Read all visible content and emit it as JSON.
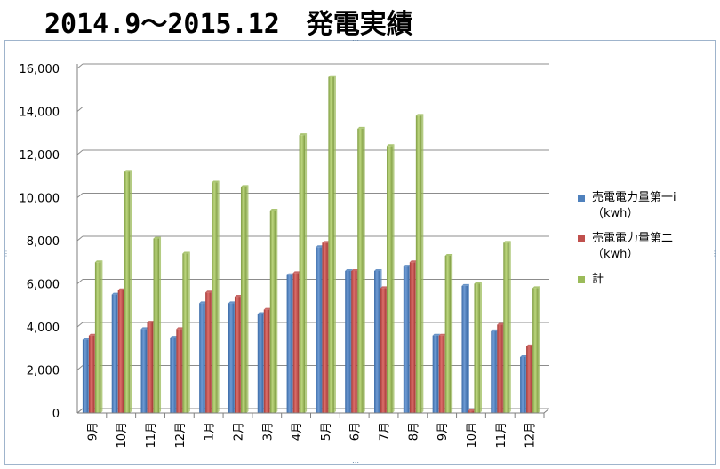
{
  "title": "2014.9～2015.12　発電実績",
  "chart_data": {
    "type": "bar",
    "categories": [
      "9月",
      "10月",
      "11月",
      "12月",
      "1月",
      "2月",
      "3月",
      "4月",
      "5月",
      "6月",
      "7月",
      "8月",
      "9月",
      "10月",
      "11月",
      "12月"
    ],
    "series": [
      {
        "name": "売電電力量第一i（kwh）",
        "color": "#4f81bd",
        "values": [
          3400,
          5500,
          3900,
          3500,
          5100,
          5100,
          4600,
          6400,
          7700,
          6600,
          6600,
          6800,
          3600,
          5900,
          3800,
          2600
        ]
      },
      {
        "name": "売電電力量第二（kwh）",
        "color": "#c0504d",
        "values": [
          3600,
          5700,
          4200,
          3900,
          5600,
          5400,
          4800,
          6500,
          7900,
          6600,
          5800,
          7000,
          3600,
          100,
          4100,
          3100
        ]
      },
      {
        "name": "計",
        "color": "#9bbb59",
        "values": [
          7000,
          11200,
          8100,
          7400,
          10700,
          10500,
          9400,
          12900,
          15600,
          13200,
          12400,
          13800,
          7300,
          6000,
          7900,
          5800
        ]
      }
    ],
    "ylim": [
      0,
      16000
    ],
    "yticks": [
      "0",
      "2,000",
      "4,000",
      "6,000",
      "8,000",
      "10,000",
      "12,000",
      "14,000",
      "16,000"
    ],
    "grid": true,
    "legend_position": "right"
  }
}
